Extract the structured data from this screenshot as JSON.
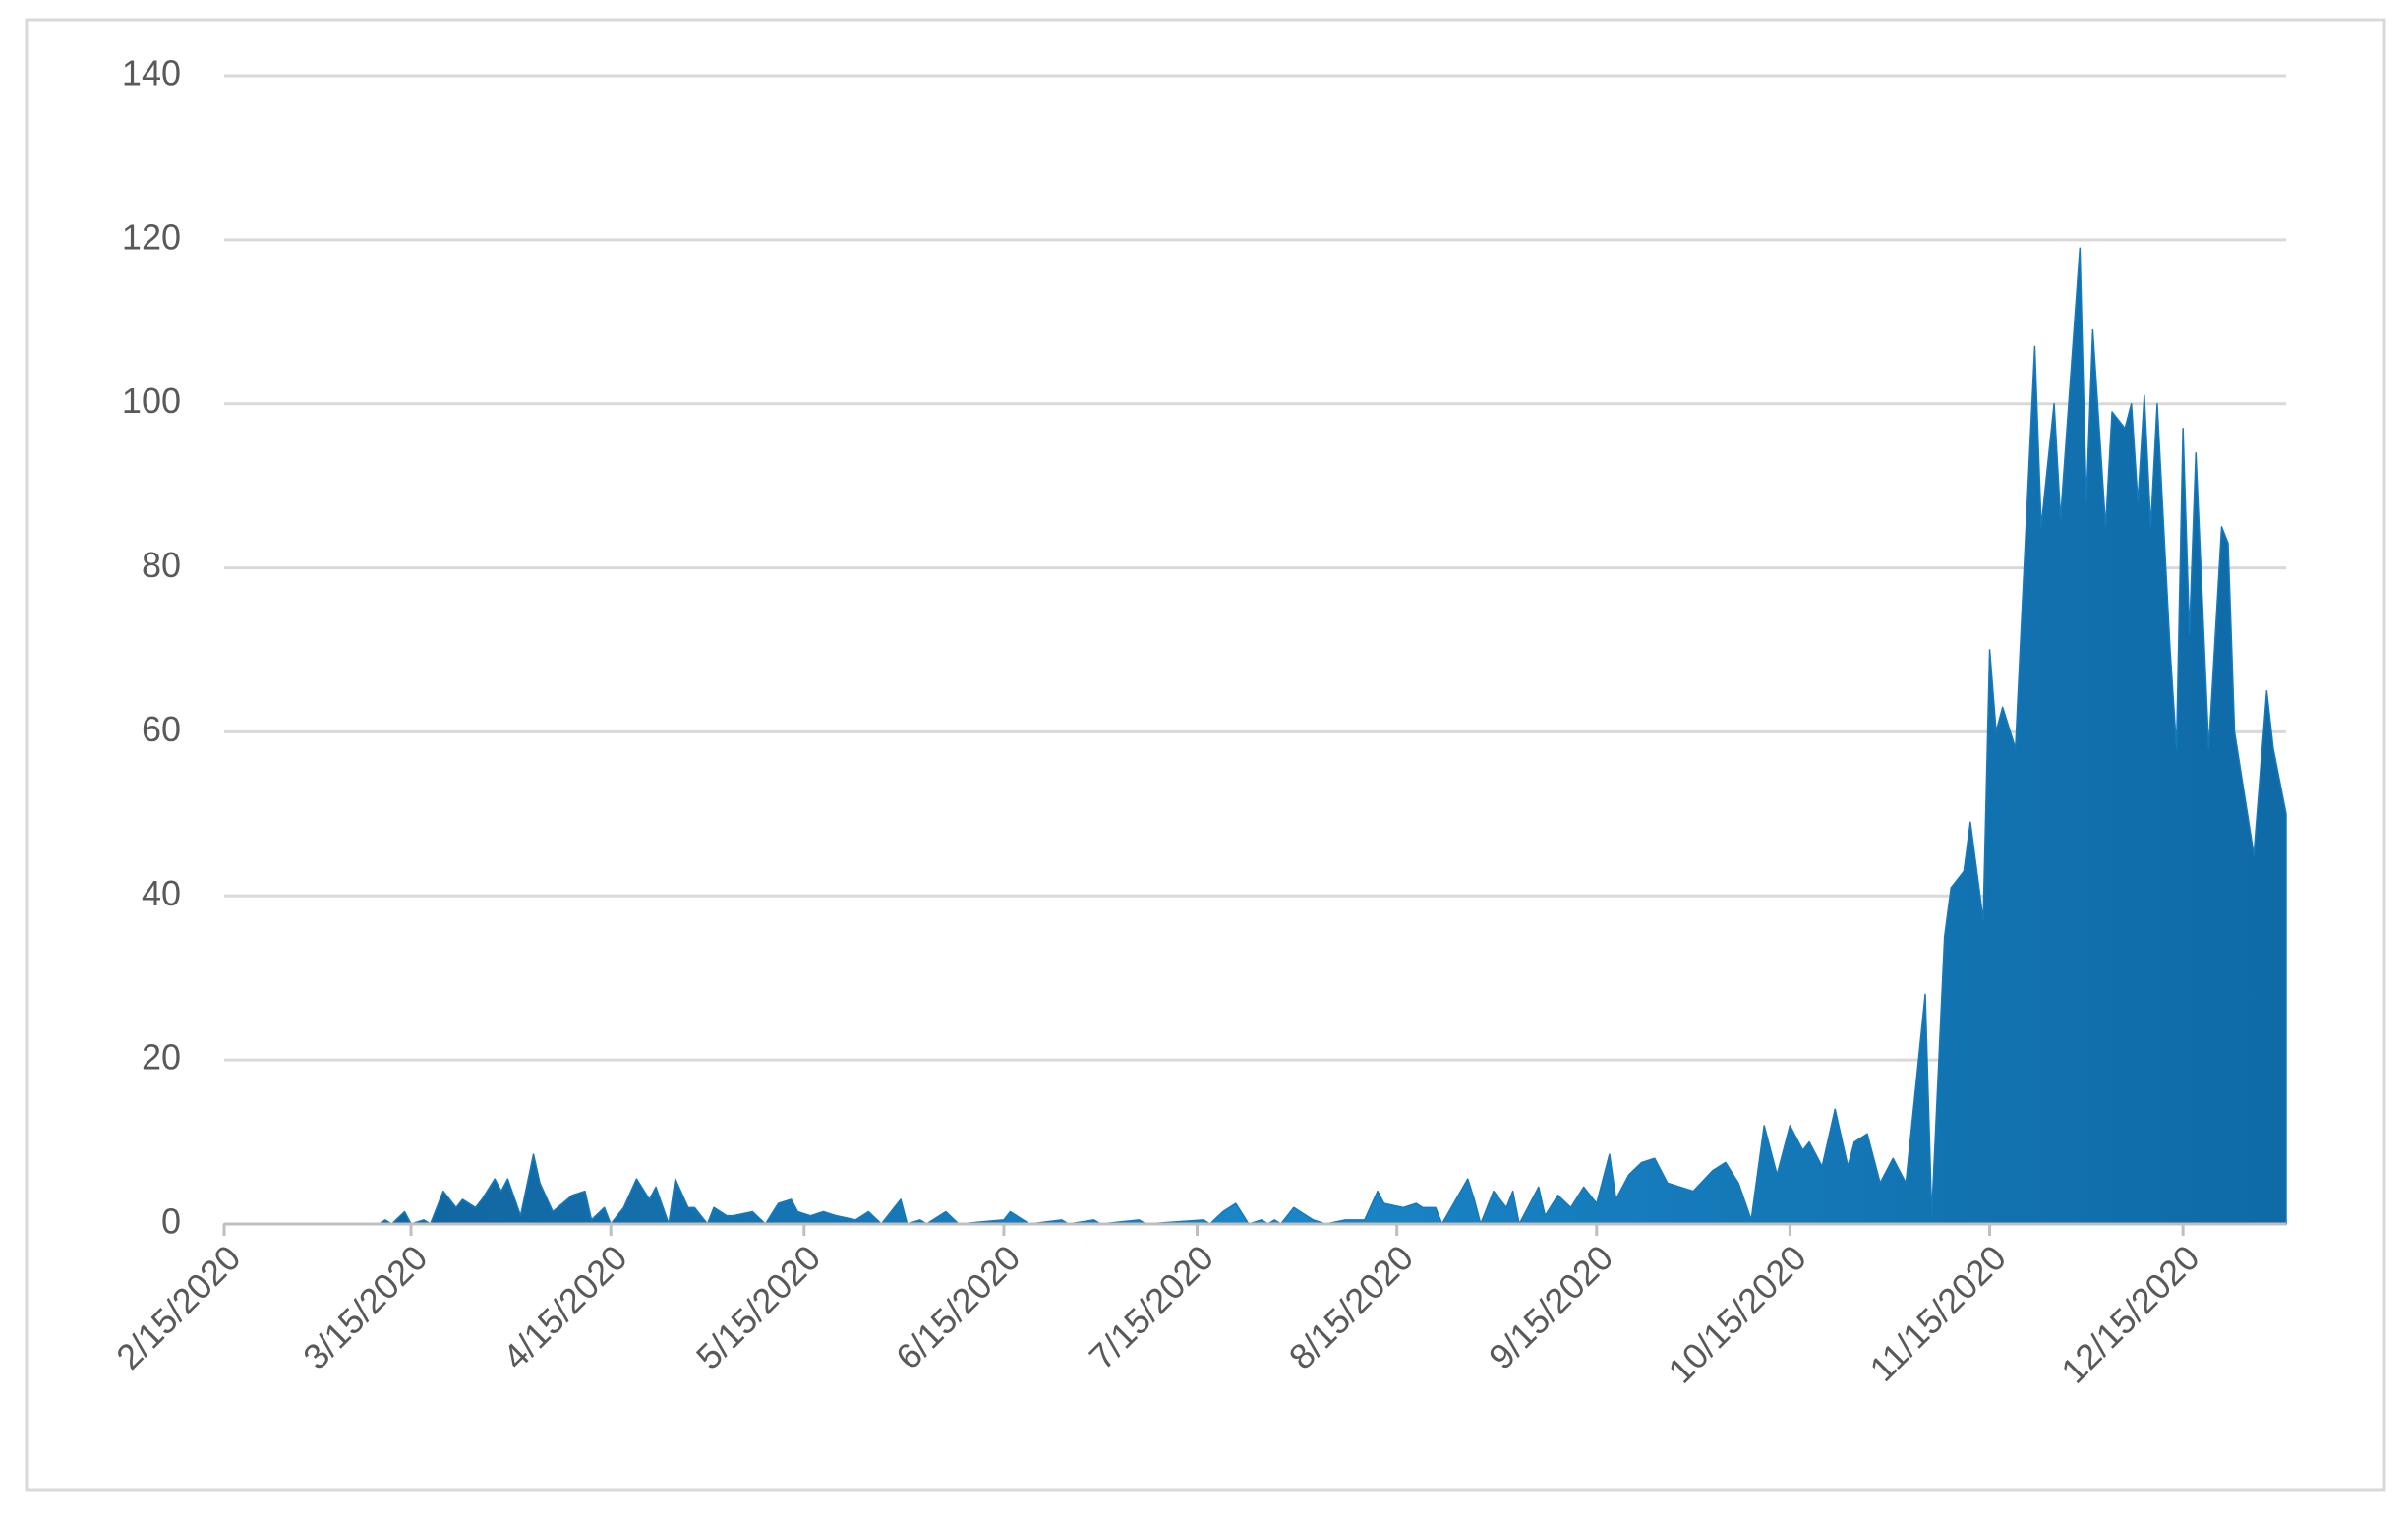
{
  "chart_data": {
    "type": "area",
    "color": "#1479bd",
    "grid": true,
    "xlim": [
      "2/15/2020",
      "12/31/2020"
    ],
    "xticks": [
      "2/15/2020",
      "3/15/2020",
      "4/15/2020",
      "5/15/2020",
      "6/15/2020",
      "7/15/2020",
      "8/15/2020",
      "9/15/2020",
      "10/15/2020",
      "11/15/2020",
      "12/15/2020"
    ],
    "ylim": [
      0,
      140
    ],
    "yticks": [
      0,
      20,
      40,
      60,
      80,
      100,
      120,
      140
    ],
    "x": [
      "2/15/2020",
      "3/10/2020",
      "3/11/2020",
      "3/12/2020",
      "3/14/2020",
      "3/15/2020",
      "3/17/2020",
      "3/18/2020",
      "3/20/2020",
      "3/22/2020",
      "3/23/2020",
      "3/25/2020",
      "3/26/2020",
      "3/28/2020",
      "3/29/2020",
      "3/30/2020",
      "4/1/2020",
      "4/3/2020",
      "4/4/2020",
      "4/6/2020",
      "4/9/2020",
      "4/11/2020",
      "4/12/2020",
      "4/14/2020",
      "4/15/2020",
      "4/17/2020",
      "4/19/2020",
      "4/21/2020",
      "4/22/2020",
      "4/24/2020",
      "4/25/2020",
      "4/27/2020",
      "4/28/2020",
      "4/30/2020",
      "5/1/2020",
      "5/3/2020",
      "5/4/2020",
      "5/7/2020",
      "5/9/2020",
      "5/11/2020",
      "5/13/2020",
      "5/14/2020",
      "5/16/2020",
      "5/18/2020",
      "5/20/2020",
      "5/23/2020",
      "5/25/2020",
      "5/27/2020",
      "5/30/2020",
      "5/31/2020",
      "6/2/2020",
      "6/3/2020",
      "6/6/2020",
      "6/8/2020",
      "6/15/2020",
      "6/16/2020",
      "6/18/2020",
      "6/19/2020",
      "6/24/2020",
      "6/25/2020",
      "6/29/2020",
      "6/30/2020",
      "7/6/2020",
      "7/7/2020",
      "7/16/2020",
      "7/17/2020",
      "7/19/2020",
      "7/21/2020",
      "7/23/2020",
      "7/25/2020",
      "7/26/2020",
      "7/27/2020",
      "7/28/2020",
      "7/30/2020",
      "7/31/2020",
      "8/2/2020",
      "8/4/2020",
      "8/7/2020",
      "8/10/2020",
      "8/12/2020",
      "8/13/2020",
      "8/16/2020",
      "8/18/2020",
      "8/19/2020",
      "8/21/2020",
      "8/22/2020",
      "8/26/2020",
      "8/27/2020",
      "8/28/2020",
      "8/30/2020",
      "9/1/2020",
      "9/2/2020",
      "9/3/2020",
      "9/6/2020",
      "9/7/2020",
      "9/9/2020",
      "9/11/2020",
      "9/13/2020",
      "9/15/2020",
      "9/17/2020",
      "9/18/2020",
      "9/20/2020",
      "9/22/2020",
      "9/24/2020",
      "9/26/2020",
      "9/30/2020",
      "10/3/2020",
      "10/5/2020",
      "10/7/2020",
      "10/9/2020",
      "10/11/2020",
      "10/13/2020",
      "10/15/2020",
      "10/17/2020",
      "10/18/2020",
      "10/20/2020",
      "10/22/2020",
      "10/24/2020",
      "10/25/2020",
      "10/27/2020",
      "10/29/2020",
      "10/31/2020",
      "11/2/2020",
      "11/5/2020",
      "11/6/2020",
      "11/8/2020",
      "11/9/2020",
      "11/11/2020",
      "11/12/2020",
      "11/14/2020",
      "11/15/2020",
      "11/16/2020",
      "11/17/2020",
      "11/19/2020",
      "11/22/2020",
      "11/23/2020",
      "11/25/2020",
      "11/26/2020",
      "11/29/2020",
      "11/30/2020",
      "12/1/2020",
      "12/3/2020",
      "12/4/2020",
      "12/6/2020",
      "12/7/2020",
      "12/8/2020",
      "12/9/2020",
      "12/10/2020",
      "12/11/2020",
      "12/13/2020",
      "12/14/2020",
      "12/15/2020",
      "12/16/2020",
      "12/17/2020",
      "12/19/2020",
      "12/21/2020",
      "12/22/2020",
      "12/23/2020",
      "12/26/2020",
      "12/28/2020",
      "12/29/2020",
      "12/31/2020"
    ],
    "values": [
      0,
      0,
      0.5,
      0,
      1.5,
      0,
      0.5,
      0,
      4,
      2,
      3,
      2,
      3,
      5.5,
      4,
      5.5,
      1,
      8.5,
      5,
      1.5,
      3.5,
      4,
      0.5,
      2,
      0,
      2,
      5.5,
      3,
      4.5,
      0,
      5.5,
      2,
      2,
      0,
      2,
      1,
      1,
      1.5,
      0,
      2.5,
      3,
      1.5,
      1,
      1.5,
      1,
      0.5,
      1.5,
      0,
      3,
      0,
      0.5,
      0,
      1.5,
      0,
      0.5,
      1.5,
      0.5,
      0,
      0.5,
      0,
      0.5,
      0,
      0.5,
      0,
      0.5,
      0,
      1.5,
      2.5,
      0,
      0.5,
      0,
      0.5,
      0,
      2,
      1.5,
      0.5,
      0,
      0.5,
      0.5,
      4,
      2.5,
      2,
      2.5,
      2,
      2,
      0,
      5.5,
      3,
      0,
      4,
      2,
      4,
      0,
      4.5,
      1,
      3.5,
      2,
      4.5,
      2.5,
      8.5,
      3,
      6,
      7.5,
      8,
      5,
      4,
      6.5,
      7.5,
      5,
      0.5,
      12,
      6,
      12,
      9,
      10,
      7,
      14,
      7,
      10,
      11,
      5,
      8,
      5,
      28,
      1,
      35,
      41,
      43,
      49,
      37,
      70,
      60,
      63,
      58,
      107,
      85,
      100,
      86,
      119,
      88,
      109,
      85,
      99,
      97,
      100,
      88,
      101,
      85,
      100,
      70,
      58,
      97,
      72,
      94,
      58,
      85,
      83,
      60,
      45,
      65,
      58,
      50
    ]
  }
}
